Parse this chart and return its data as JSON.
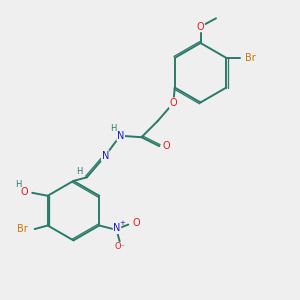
{
  "bg_color": "#efefef",
  "bond_color": "#2a7a68",
  "bond_lw": 1.4,
  "dbo": 0.055,
  "atom_colors": {
    "C": "#2a7a68",
    "H": "#2a7a68",
    "O": "#dd2020",
    "N": "#1a1acc",
    "Br": "#cc7700"
  },
  "fs": 7.0,
  "fsh": 6.0,
  "xlim": [
    0,
    10
  ],
  "ylim": [
    0,
    10
  ]
}
